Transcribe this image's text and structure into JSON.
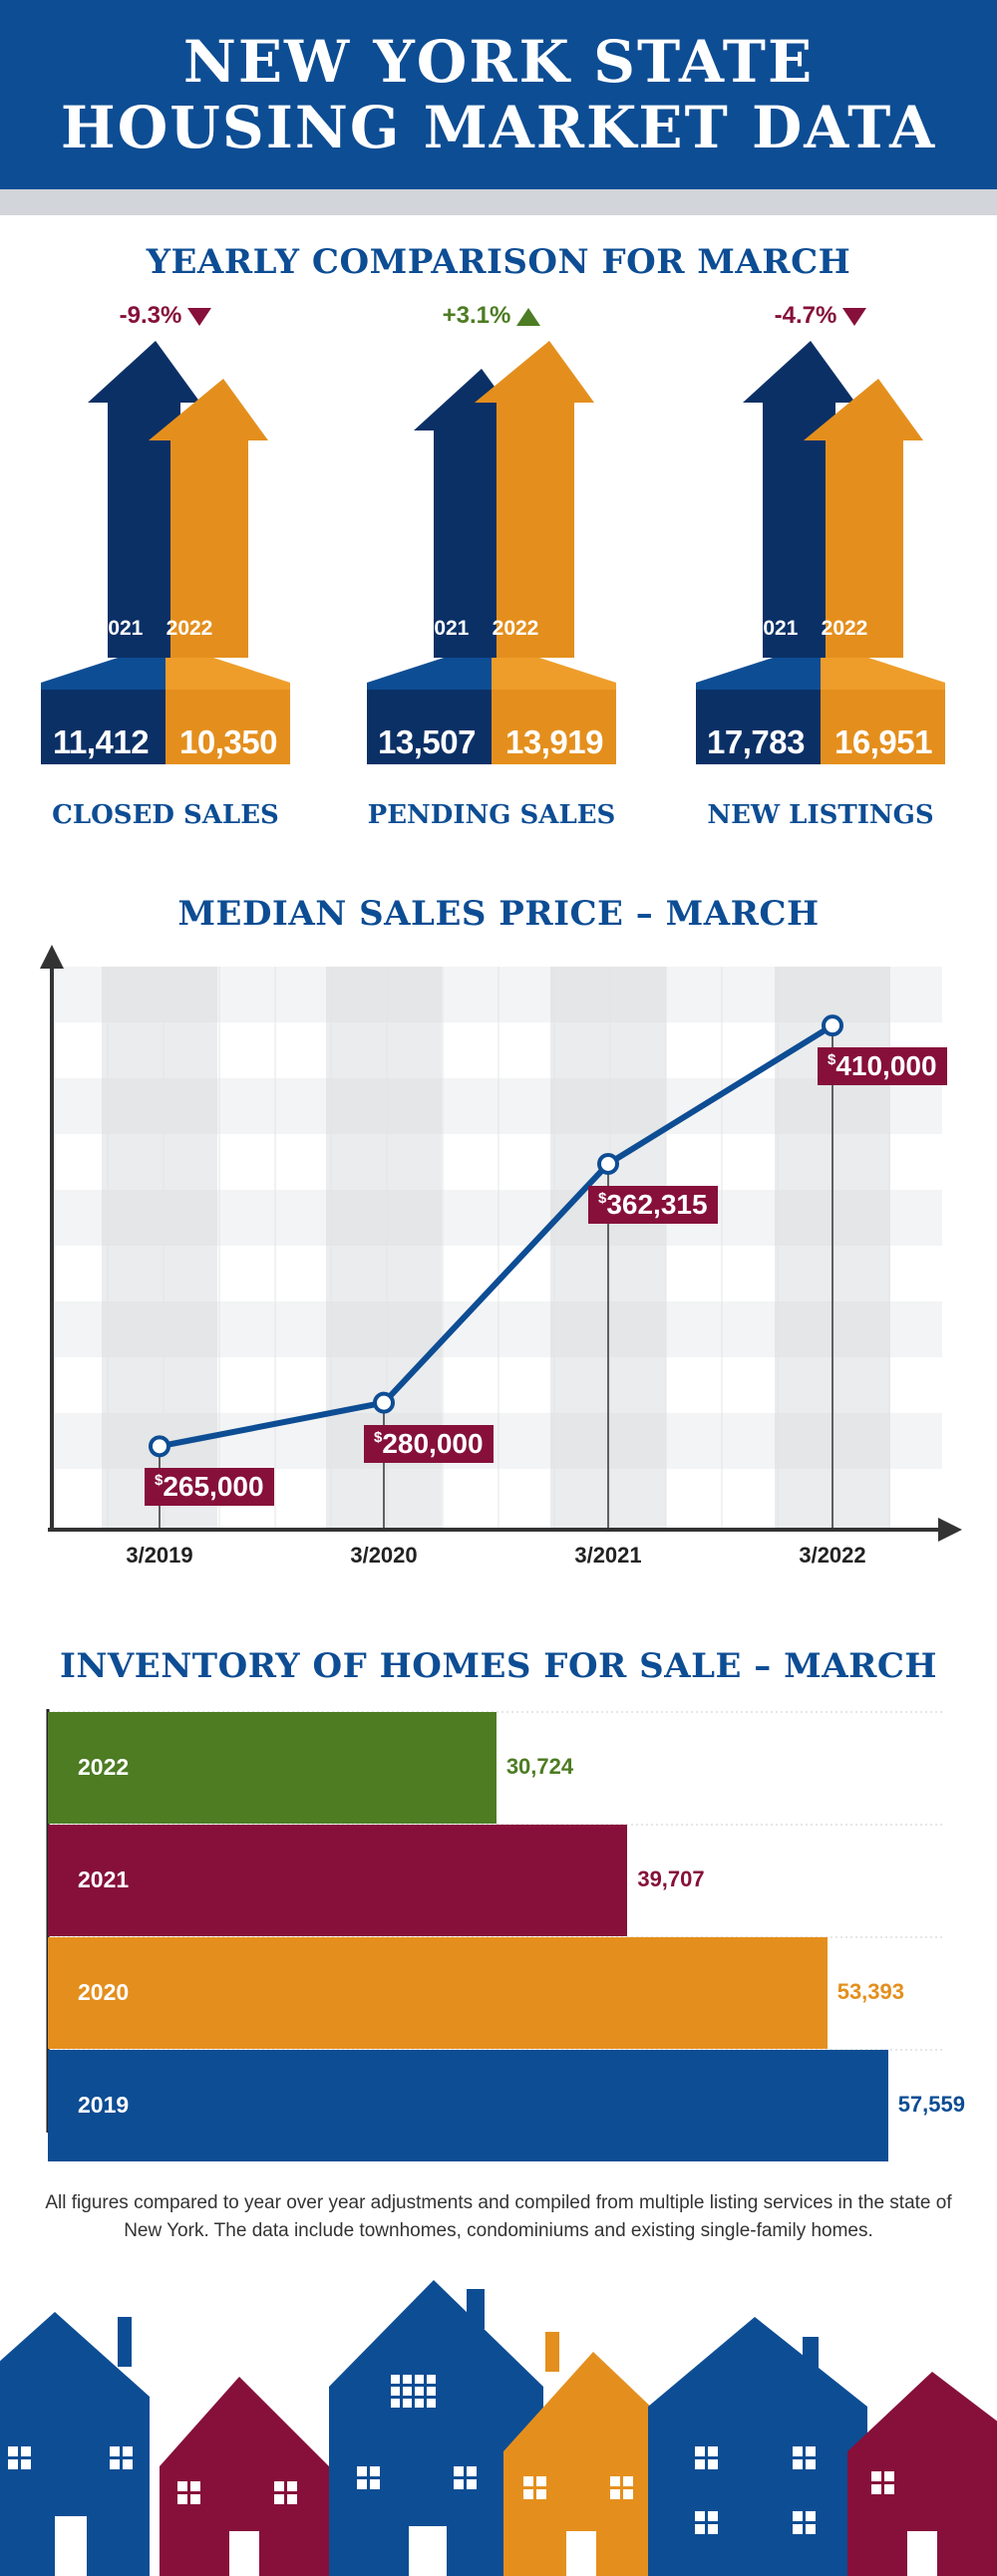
{
  "header": {
    "line1": "NEW YORK STATE",
    "line2": "HOUSING MARKET DATA"
  },
  "colors": {
    "navy": "#0d4d94",
    "dark_navy": "#0b3066",
    "orange": "#e48f1d",
    "maroon": "#86103a",
    "green": "#4d7c23"
  },
  "yearly": {
    "title": "YEARLY COMPARISON FOR MARCH",
    "metrics": [
      {
        "label": "CLOSED SALES",
        "change": "-9.3%",
        "direction": "down",
        "year_a": "2021",
        "year_b": "2022",
        "value_a": "11,412",
        "value_b": "10,350"
      },
      {
        "label": "PENDING SALES",
        "change": "+3.1%",
        "direction": "up",
        "year_a": "2021",
        "year_b": "2022",
        "value_a": "13,507",
        "value_b": "13,919"
      },
      {
        "label": "NEW LISTINGS",
        "change": "-4.7%",
        "direction": "down",
        "year_a": "2021",
        "year_b": "2022",
        "value_a": "17,783",
        "value_b": "16,951"
      }
    ]
  },
  "chart_data": [
    {
      "type": "line",
      "title": "MEDIAN SALES PRICE – MARCH",
      "x": [
        "3/2019",
        "3/2020",
        "3/2021",
        "3/2022"
      ],
      "values": [
        265000,
        280000,
        362315,
        410000
      ],
      "data_labels": [
        {
          "currency": "$",
          "amount": "265,000"
        },
        {
          "currency": "$",
          "amount": "280,000"
        },
        {
          "currency": "$",
          "amount": "362,315"
        },
        {
          "currency": "$",
          "amount": "410,000"
        }
      ],
      "ylim": [
        250000,
        420000
      ],
      "grid": true
    },
    {
      "type": "bar",
      "orientation": "horizontal",
      "title": "INVENTORY OF HOMES FOR SALE – MARCH",
      "categories": [
        "2022",
        "2021",
        "2020",
        "2019"
      ],
      "values": [
        30724,
        39707,
        53393,
        57559
      ],
      "value_labels": [
        "30,724",
        "39,707",
        "53,393",
        "57,559"
      ],
      "colors": [
        "#4d7c23",
        "#86103a",
        "#e48f1d",
        "#0d4d94"
      ],
      "xlim": [
        0,
        64000
      ]
    }
  ],
  "footnote": "All figures compared to year over year adjustments and compiled from multiple listing services in the state of New York.  The data include townhomes, condominiums and existing single-family homes."
}
